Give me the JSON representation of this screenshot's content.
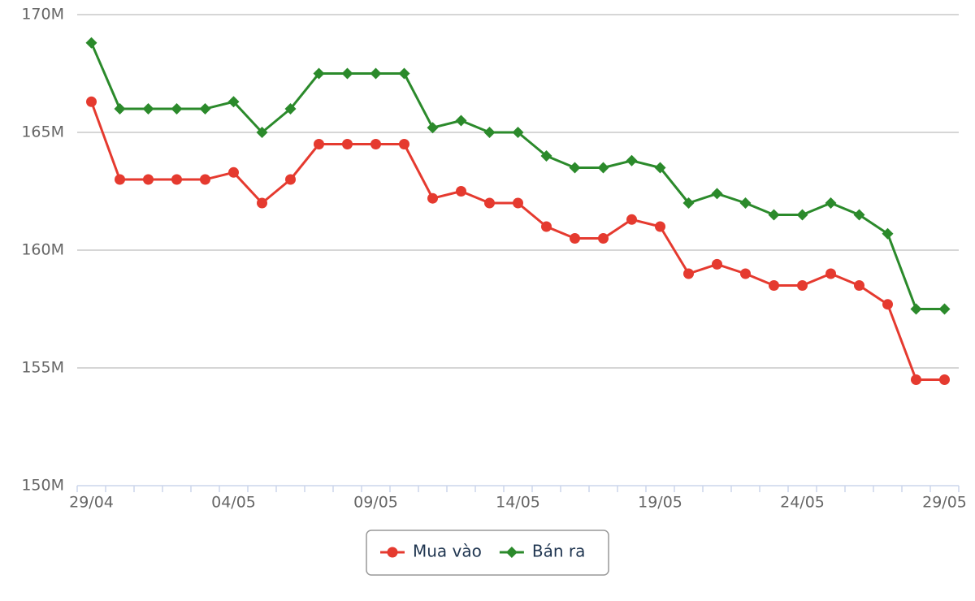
{
  "chart_data": {
    "type": "line",
    "categories": [
      "29/04",
      null,
      null,
      null,
      null,
      "04/05",
      null,
      null,
      null,
      null,
      "09/05",
      null,
      null,
      null,
      null,
      "14/05",
      null,
      null,
      null,
      null,
      "19/05",
      null,
      null,
      null,
      null,
      "24/05",
      null,
      null,
      null,
      null,
      "29/05"
    ],
    "series": [
      {
        "name": "Mua vào",
        "color": "#e53a2f",
        "marker": "circle",
        "values": [
          166.3,
          163.0,
          163.0,
          163.0,
          163.0,
          163.3,
          162.0,
          163.0,
          164.5,
          164.5,
          164.5,
          164.5,
          162.2,
          162.5,
          162.0,
          162.0,
          161.0,
          160.5,
          160.5,
          161.3,
          161.0,
          159.0,
          159.4,
          159.0,
          158.5,
          158.5,
          159.0,
          158.5,
          157.7,
          154.5,
          154.5
        ]
      },
      {
        "name": "Bán ra",
        "color": "#2b8a2b",
        "marker": "diamond",
        "values": [
          168.8,
          166.0,
          166.0,
          166.0,
          166.0,
          166.3,
          165.0,
          166.0,
          167.5,
          167.5,
          167.5,
          167.5,
          165.2,
          165.5,
          165.0,
          165.0,
          164.0,
          163.5,
          163.5,
          163.8,
          163.5,
          162.0,
          162.4,
          162.0,
          161.5,
          161.5,
          162.0,
          161.5,
          160.7,
          157.5,
          157.5
        ]
      }
    ],
    "ylim": [
      150,
      170
    ],
    "yticks": [
      {
        "value": 150,
        "label": "150M"
      },
      {
        "value": 155,
        "label": "155M"
      },
      {
        "value": 160,
        "label": "160M"
      },
      {
        "value": 165,
        "label": "165M"
      },
      {
        "value": 170,
        "label": "170M"
      }
    ],
    "grid": true,
    "legend": "bottom"
  }
}
